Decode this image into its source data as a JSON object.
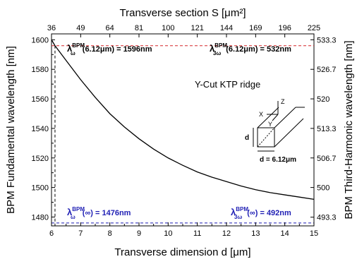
{
  "chart_data": {
    "type": "line",
    "xlabel": "Transverse dimension d [μm]",
    "x2label": "Transverse section S [μm²]",
    "ylabel": "BPM Fundamental wavelength [nm]",
    "y2label": "BPM Third-Harmonic wavelength [nm]",
    "xlim": [
      6,
      15
    ],
    "ylim": [
      1474,
      1604
    ],
    "x_ticks": [
      6,
      7,
      8,
      9,
      10,
      11,
      12,
      13,
      14,
      15
    ],
    "y_ticks": [
      1480,
      1500,
      1520,
      1540,
      1560,
      1580,
      1600
    ],
    "top_ticks": [
      {
        "value": 6,
        "label": "36"
      },
      {
        "value": 7,
        "label": "49"
      },
      {
        "value": 8,
        "label": "64"
      },
      {
        "value": 9,
        "label": "81"
      },
      {
        "value": 10,
        "label": "100"
      },
      {
        "value": 11,
        "label": "121"
      },
      {
        "value": 12,
        "label": "144"
      },
      {
        "value": 13,
        "label": "169"
      },
      {
        "value": 14,
        "label": "196"
      },
      {
        "value": 15,
        "label": "225"
      }
    ],
    "right_ticks": [
      {
        "value": 1479.9,
        "label": "493.3"
      },
      {
        "value": 1500,
        "label": "500"
      },
      {
        "value": 1520,
        "label": "506.7"
      },
      {
        "value": 1540,
        "label": "513.3"
      },
      {
        "value": 1560,
        "label": "520"
      },
      {
        "value": 1580,
        "label": "526.7"
      },
      {
        "value": 1600,
        "label": "533.3"
      }
    ],
    "series": [
      {
        "x": [
          6.0,
          6.12,
          6.5,
          7.0,
          7.5,
          8.0,
          8.5,
          9.0,
          9.5,
          10.0,
          10.5,
          11.0,
          11.5,
          12.0,
          12.5,
          13.0,
          13.5,
          14.0,
          14.5,
          15.0
        ],
        "y": [
          1600,
          1596,
          1586,
          1573,
          1561,
          1550,
          1541,
          1533,
          1526,
          1520,
          1515,
          1510.5,
          1507,
          1504,
          1501,
          1498.5,
          1496.5,
          1495,
          1493.5,
          1492
        ],
        "color": "#000000"
      }
    ],
    "reference_lines": [
      {
        "orientation": "horizontal",
        "y": 1596,
        "color": "#d62728",
        "style": "dashed"
      },
      {
        "orientation": "horizontal",
        "y": 1476,
        "color": "#1f1fb4",
        "style": "dashed"
      },
      {
        "orientation": "vertical",
        "x": 6.12,
        "color": "#000000",
        "style": "dashed"
      }
    ],
    "grid": false
  },
  "annotations": {
    "lambda": "λ",
    "bpm_sup": "BPM",
    "omega_sub": "ω",
    "three_omega_sub": "3ω",
    "top_left_rest": "(6.12μm) = 1596nm",
    "top_right_rest": "(6.12μm) = 532nm",
    "bottom_left_rest": "(∞) = 1476nm",
    "bottom_right_rest": "(∞) = 492nm",
    "crystal_label": "Y-Cut KTP ridge",
    "inset_d": "d",
    "inset_d_value": "d = 6.12μm",
    "inset_x": "X",
    "inset_y": "Y",
    "inset_z": "Z"
  },
  "colors": {
    "curve": "#000000",
    "red_ref": "#d62728",
    "blue_ref": "#1f1fb4"
  }
}
